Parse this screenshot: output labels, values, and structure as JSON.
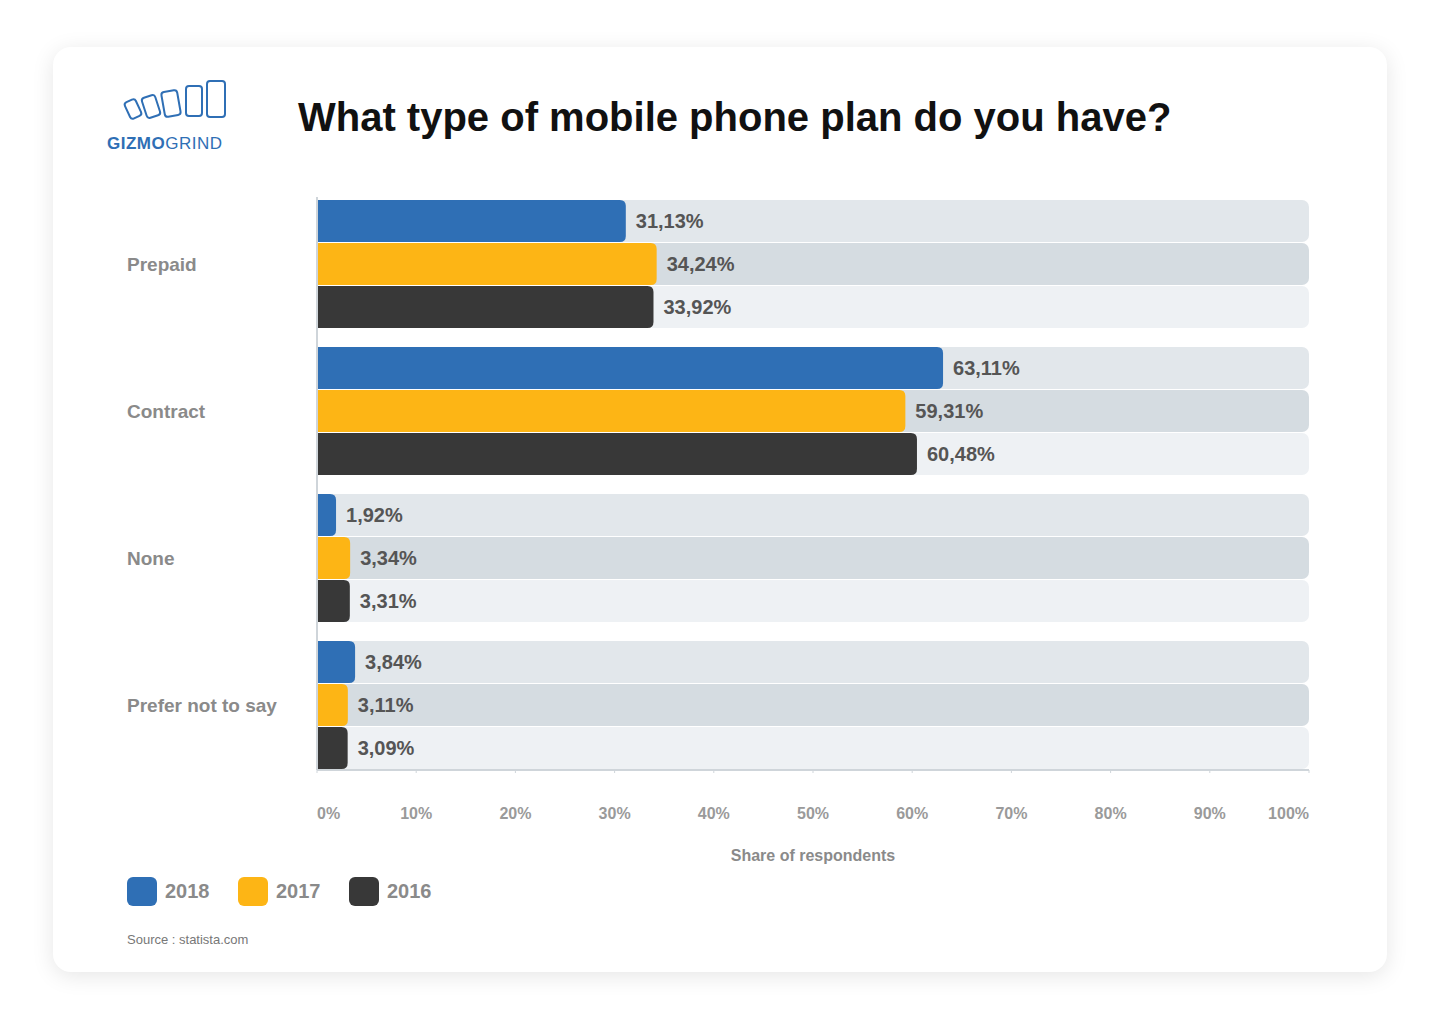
{
  "header": {
    "logo": {
      "strong": "GIZMO",
      "light": "GRIND"
    }
  },
  "chart_data": {
    "type": "bar",
    "orientation": "horizontal",
    "title": "What type of mobile phone plan do you have?",
    "x_label": "Share of respondents",
    "source": "Source : statista.com",
    "categories": [
      "Prepaid",
      "Contract",
      "None",
      "Prefer not to say"
    ],
    "series": [
      {
        "name": "2018",
        "color": "#2f6fb5",
        "values": [
          31.13,
          63.11,
          1.92,
          3.84
        ],
        "value_labels": [
          "31,13%",
          "63,11%",
          "1,92%",
          "3,84%"
        ]
      },
      {
        "name": "2017",
        "color": "#fdb515",
        "values": [
          34.24,
          59.31,
          3.34,
          3.11
        ],
        "value_labels": [
          "34,24%",
          "59,31%",
          "3,34%",
          "3,11%"
        ]
      },
      {
        "name": "2016",
        "color": "#383838",
        "values": [
          33.92,
          60.48,
          3.31,
          3.09
        ],
        "value_labels": [
          "33,92%",
          "60,48%",
          "3,31%",
          "3,09%"
        ]
      }
    ],
    "xlim": [
      0,
      100
    ],
    "xticks": [
      {
        "value": 0,
        "label": "0%"
      },
      {
        "value": 10,
        "label": "10%"
      },
      {
        "value": 20,
        "label": "20%"
      },
      {
        "value": 30,
        "label": "30%"
      },
      {
        "value": 40,
        "label": "40%"
      },
      {
        "value": 50,
        "label": "50%"
      },
      {
        "value": 60,
        "label": "60%"
      },
      {
        "value": 70,
        "label": "70%"
      },
      {
        "value": 80,
        "label": "80%"
      },
      {
        "value": 90,
        "label": "90%"
      },
      {
        "value": 100,
        "label": "100%"
      }
    ],
    "grid": false,
    "data_labels": true,
    "legend": "bottom"
  }
}
